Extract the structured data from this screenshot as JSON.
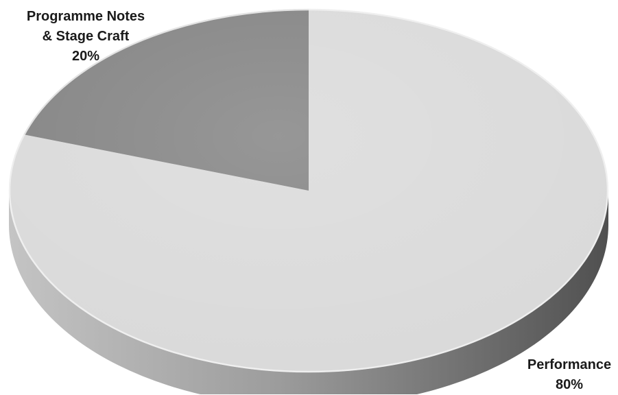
{
  "chart_data": {
    "type": "pie",
    "style": "3d",
    "categories": [
      "Programme Notes & Stage Craft",
      "Performance"
    ],
    "values": [
      20,
      80
    ],
    "unit": "%",
    "title": "",
    "legend": "none",
    "data_labels": [
      {
        "line1": "Programme Notes",
        "line2": "& Stage Craft",
        "pct": "20%"
      },
      {
        "line1": "Performance",
        "line2": "",
        "pct": "80%"
      }
    ],
    "colors": {
      "programme_notes": "#808080",
      "performance": "#d9d9d9",
      "side_light": "#c0c0c0",
      "side_dark": "#525252"
    }
  }
}
